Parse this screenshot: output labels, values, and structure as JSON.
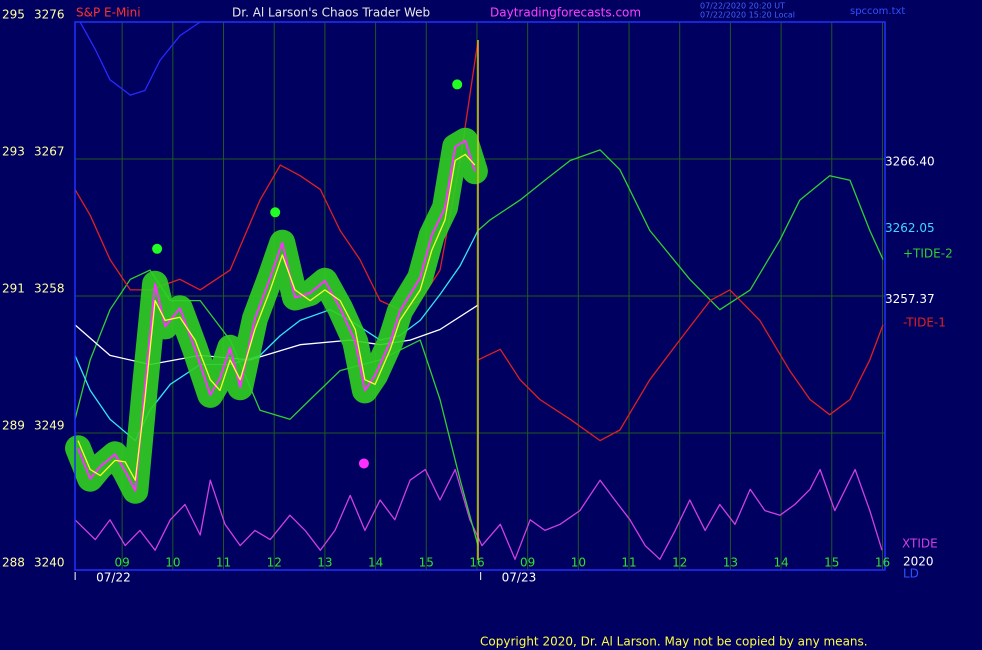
{
  "chart_data": {
    "type": "line",
    "header": {
      "symbol": "S&P E-Mini",
      "title": "Dr. Al Larson's Chaos Trader Web",
      "site": "Daytradingforecasts.com",
      "ut": "07/22/2020 20:20 UT",
      "local": "07/22/2020 15:20 Local",
      "file": "spccom.txt"
    },
    "copyright": "Copyright 2020, Dr. Al Larson. May not be copied by any means.",
    "xlim": [
      -0.93,
      15.05
    ],
    "ylim": [
      3240,
      3276
    ],
    "yticks": [
      {
        "value": 3276,
        "label": "3276",
        "scale2": "295"
      },
      {
        "value": 3267,
        "label": "3267",
        "scale2": "293"
      },
      {
        "value": 3258,
        "label": "3258",
        "scale2": "291"
      },
      {
        "value": 3249,
        "label": "3249",
        "scale2": "289"
      },
      {
        "value": 3240,
        "label": "3240",
        "scale2": "288"
      }
    ],
    "xticks": [
      {
        "value": 0,
        "label": "09"
      },
      {
        "value": 1,
        "label": "10"
      },
      {
        "value": 2,
        "label": "11"
      },
      {
        "value": 3,
        "label": "12"
      },
      {
        "value": 4,
        "label": "13"
      },
      {
        "value": 5,
        "label": "14"
      },
      {
        "value": 6,
        "label": "15"
      },
      {
        "value": 7,
        "label": "16"
      },
      {
        "value": 8,
        "label": "09"
      },
      {
        "value": 9,
        "label": "10"
      },
      {
        "value": 10,
        "label": "11"
      },
      {
        "value": 11,
        "label": "12"
      },
      {
        "value": 12,
        "label": "13"
      },
      {
        "value": 13,
        "label": "14"
      },
      {
        "value": 14,
        "label": "15"
      },
      {
        "value": 15,
        "label": "16"
      }
    ],
    "dates": [
      {
        "value": 0,
        "label": "07/22"
      },
      {
        "value": 8,
        "label": "07/23"
      }
    ],
    "grid": true,
    "series": [
      {
        "color": "#2828ff",
        "x": [
          -0.83,
          -0.53,
          -0.24,
          0.16,
          0.45,
          0.75,
          1.14,
          1.54
        ],
        "values": [
          3276,
          3274.2,
          3272.2,
          3271.2,
          3271.5,
          3273.5,
          3275.1,
          3276
        ]
      },
      {
        "name": "XTIDE",
        "color": "#d040e0",
        "x": [
          -0.93,
          -0.53,
          -0.24,
          0.06,
          0.35,
          0.65,
          0.95,
          1.24,
          1.54,
          1.74,
          2.03,
          2.33,
          2.62,
          2.92,
          3.31,
          3.61,
          3.91,
          4.2,
          4.5,
          4.79,
          5.09,
          5.38,
          5.68,
          5.98,
          6.27,
          6.57,
          6.86,
          7.1,
          7.46,
          7.75,
          8.05,
          8.34,
          8.64,
          9.03,
          9.43,
          9.72,
          10.02,
          10.32,
          10.61,
          10.91,
          11.2,
          11.5,
          11.79,
          12.09,
          12.39,
          12.68,
          12.98,
          13.27,
          13.57,
          13.77,
          14.06,
          14.46,
          14.75,
          14.99
        ],
        "values": [
          3243.3,
          3242.0,
          3243.3,
          3241.6,
          3242.6,
          3241.3,
          3243.3,
          3244.3,
          3242.3,
          3245.9,
          3243.0,
          3241.6,
          3242.6,
          3242.0,
          3243.6,
          3242.6,
          3241.3,
          3242.6,
          3244.9,
          3242.6,
          3244.6,
          3243.3,
          3245.9,
          3246.6,
          3244.6,
          3246.6,
          3243.3,
          3241.6,
          3243.0,
          3240.7,
          3243.3,
          3242.6,
          3243.0,
          3243.9,
          3245.9,
          3244.6,
          3243.3,
          3241.6,
          3240.7,
          3242.6,
          3244.6,
          3242.6,
          3244.3,
          3243.0,
          3245.3,
          3243.9,
          3243.6,
          3244.3,
          3245.3,
          3246.6,
          3243.9,
          3246.6,
          3243.9,
          3241.3
        ]
      },
      {
        "name": "+TIDE-2",
        "color": "#30d030",
        "x": [
          -0.93,
          -0.63,
          -0.24,
          0.16,
          0.55,
          0.95,
          1.54,
          2.13,
          2.72,
          3.31,
          3.71,
          4.3,
          5.09,
          5.88,
          6.27,
          6.67,
          7.02,
          7.02,
          7.02,
          7.26,
          7.85,
          8.34,
          8.84,
          9.43,
          9.82,
          10.41,
          11.2,
          11.79,
          12.39,
          12.98,
          13.37,
          13.96,
          14.36,
          14.75,
          15.01
        ],
        "values": [
          3249.9,
          3253.8,
          3257.1,
          3259.1,
          3259.7,
          3257.7,
          3257.7,
          3255.1,
          3250.5,
          3249.9,
          3251.2,
          3253.1,
          3253.8,
          3255.1,
          3251.2,
          3245.9,
          3241.6,
          null,
          3262.3,
          3263.0,
          3264.3,
          3265.6,
          3266.9,
          3267.6,
          3266.3,
          3262.3,
          3259.1,
          3257.1,
          3258.4,
          3261.7,
          3264.3,
          3265.9,
          3265.6,
          3262.3,
          3260.4
        ]
      },
      {
        "name": "-TIDE-1",
        "color": "#e02020",
        "x": [
          -0.93,
          -0.63,
          -0.24,
          0.16,
          0.55,
          1.14,
          1.54,
          2.13,
          2.72,
          3.12,
          3.51,
          3.91,
          4.3,
          4.69,
          5.09,
          5.48,
          5.88,
          6.27,
          6.67,
          7.02,
          7.02,
          7.02,
          7.46,
          7.85,
          8.24,
          8.84,
          9.43,
          9.82,
          10.41,
          11.0,
          11.6,
          11.99,
          12.58,
          13.17,
          13.57,
          13.96,
          14.36,
          14.75,
          15.01
        ],
        "values": [
          3265.0,
          3263.3,
          3260.4,
          3258.4,
          3258.4,
          3259.1,
          3258.4,
          3259.7,
          3264.3,
          3266.6,
          3265.9,
          3265.0,
          3262.3,
          3260.4,
          3257.7,
          3257.1,
          3257.7,
          3259.7,
          3266.9,
          3274.8,
          null,
          3253.8,
          3254.5,
          3252.5,
          3251.2,
          3249.9,
          3248.5,
          3249.2,
          3252.5,
          3255.1,
          3257.7,
          3258.4,
          3256.4,
          3253.1,
          3251.2,
          3250.2,
          3251.2,
          3253.8,
          3256.1
        ]
      },
      {
        "color": "#ffffff",
        "x": [
          -0.93,
          -0.24,
          0.55,
          1.54,
          2.52,
          3.51,
          4.5,
          5.09,
          5.68,
          6.27,
          7.02
        ],
        "values": [
          3256.1,
          3254.1,
          3253.5,
          3254.1,
          3253.8,
          3254.8,
          3255.1,
          3254.8,
          3255.1,
          3255.8,
          3257.4
        ]
      },
      {
        "color": "#30e8f0",
        "x": [
          -0.93,
          -0.63,
          -0.24,
          0.26,
          0.55,
          0.95,
          1.54,
          2.13,
          2.72,
          3.12,
          3.51,
          4.1,
          4.5,
          5.09,
          5.48,
          5.88,
          6.27,
          6.67,
          7.02
        ],
        "values": [
          3254.1,
          3251.8,
          3249.9,
          3248.5,
          3250.5,
          3252.2,
          3253.5,
          3253.5,
          3254.1,
          3255.4,
          3256.4,
          3257.1,
          3256.4,
          3255.1,
          3255.4,
          3256.4,
          3258.1,
          3260.0,
          3262.3
        ]
      },
      {
        "color": "#ff30ff",
        "glow": "#30d020",
        "x": [
          -0.87,
          -0.63,
          -0.43,
          -0.14,
          0.06,
          0.26,
          0.45,
          0.65,
          0.85,
          1.14,
          1.44,
          1.74,
          1.93,
          2.13,
          2.33,
          2.62,
          2.92,
          3.16,
          3.41,
          3.71,
          4.0,
          4.3,
          4.6,
          4.79,
          4.99,
          5.29,
          5.48,
          5.88,
          6.11,
          6.37,
          6.57,
          6.77,
          6.96
        ],
        "values": [
          3248.0,
          3246.0,
          3246.8,
          3247.6,
          3246.5,
          3245.2,
          3252.0,
          3258.8,
          3256.0,
          3257.2,
          3254.5,
          3251.5,
          3252.6,
          3254.6,
          3252.0,
          3256.5,
          3259.2,
          3261.5,
          3257.9,
          3258.2,
          3259.0,
          3257.2,
          3255.0,
          3251.8,
          3252.8,
          3255.0,
          3257.0,
          3259.2,
          3262.0,
          3263.8,
          3267.8,
          3268.2,
          3266.2
        ]
      },
      {
        "color": "#ffff30",
        "x": [
          -0.87,
          -0.63,
          -0.43,
          -0.14,
          0.06,
          0.26,
          0.45,
          0.65,
          0.85,
          1.14,
          1.44,
          1.74,
          1.93,
          2.13,
          2.33,
          2.62,
          2.92,
          3.16,
          3.41,
          3.71,
          4.0,
          4.3,
          4.6,
          4.79,
          4.99,
          5.29,
          5.48,
          5.88,
          6.11,
          6.37,
          6.57,
          6.77,
          6.96
        ],
        "values": [
          3248.5,
          3246.6,
          3246.2,
          3247.2,
          3247.1,
          3245.9,
          3251.2,
          3257.7,
          3256.4,
          3256.6,
          3255.1,
          3252.5,
          3251.8,
          3253.8,
          3252.5,
          3255.8,
          3258.4,
          3260.7,
          3258.4,
          3257.7,
          3258.4,
          3257.7,
          3255.8,
          3252.5,
          3252.2,
          3254.5,
          3256.4,
          3258.4,
          3261.0,
          3263.0,
          3266.9,
          3267.3,
          3266.6
        ]
      }
    ],
    "markers": {
      "x": [
        0.69,
        3.02,
        6.61,
        4.77
      ],
      "values": [
        3261.1,
        3263.5,
        3271.9,
        3247.0
      ],
      "colors": [
        "#20ff20",
        "#20ff20",
        "#20ff20",
        "#ff30ff"
      ]
    },
    "price_labels": [
      {
        "value": 3266.4,
        "label": "3266.40",
        "color": "#ffffff"
      },
      {
        "value": 3262.05,
        "label": "3262.05",
        "color": "#40d8ff"
      },
      {
        "value": 3257.37,
        "label": "3257.37",
        "color": "#ffffff"
      }
    ],
    "corner_labels": [
      "2020",
      "LD"
    ]
  }
}
